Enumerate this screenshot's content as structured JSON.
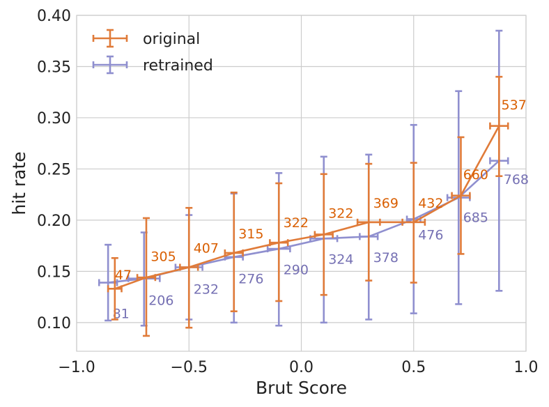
{
  "chart_data": {
    "type": "line",
    "title": "",
    "xlabel": "Brut Score",
    "ylabel": "hit rate",
    "xlim": [
      -1.0,
      1.0
    ],
    "ylim": [
      0.072,
      0.4
    ],
    "xticks": [
      -1.0,
      -0.5,
      0.0,
      0.5,
      1.0
    ],
    "xtick_labels": [
      "−1.0",
      "−0.5",
      "0.0",
      "0.5",
      "1.0"
    ],
    "yticks": [
      0.1,
      0.15,
      0.2,
      0.25,
      0.3,
      0.35,
      0.4
    ],
    "ytick_labels": [
      "0.10",
      "0.15",
      "0.20",
      "0.25",
      "0.30",
      "0.35",
      "0.40"
    ],
    "grid": true,
    "legend_position": "top-left",
    "series": [
      {
        "name": "original",
        "color": "#e07b39",
        "label_color": "#d95f02",
        "x": [
          -0.83,
          -0.69,
          -0.5,
          -0.3,
          -0.1,
          0.1,
          0.3,
          0.5,
          0.71,
          0.88
        ],
        "y": [
          0.133,
          0.144,
          0.154,
          0.168,
          0.178,
          0.186,
          0.198,
          0.198,
          0.224,
          0.292
        ],
        "xerr": [
          0.03,
          0.04,
          0.04,
          0.04,
          0.04,
          0.04,
          0.05,
          0.05,
          0.04,
          0.04
        ],
        "y_low": [
          0.103,
          0.087,
          0.095,
          0.111,
          0.121,
          0.127,
          0.141,
          0.139,
          0.167,
          0.243
        ],
        "y_high": [
          0.163,
          0.202,
          0.212,
          0.227,
          0.236,
          0.245,
          0.255,
          0.256,
          0.281,
          0.34
        ],
        "counts": [
          "47",
          "305",
          "407",
          "315",
          "322",
          "322",
          "369",
          "432",
          "660",
          "537"
        ]
      },
      {
        "name": "retrained",
        "color": "#8f8fcf",
        "label_color": "#7570b3",
        "x": [
          -0.86,
          -0.7,
          -0.5,
          -0.3,
          -0.1,
          0.1,
          0.3,
          0.5,
          0.7,
          0.88
        ],
        "y": [
          0.139,
          0.143,
          0.154,
          0.164,
          0.172,
          0.182,
          0.184,
          0.201,
          0.222,
          0.258
        ],
        "xerr": [
          0.04,
          0.07,
          0.06,
          0.04,
          0.05,
          0.06,
          0.04,
          0.03,
          0.05,
          0.04
        ],
        "y_low": [
          0.102,
          0.097,
          0.103,
          0.1,
          0.097,
          0.1,
          0.103,
          0.109,
          0.118,
          0.131
        ],
        "y_high": [
          0.176,
          0.188,
          0.205,
          0.226,
          0.246,
          0.262,
          0.264,
          0.293,
          0.326,
          0.385
        ],
        "counts": [
          "81",
          "206",
          "232",
          "276",
          "290",
          "324",
          "378",
          "476",
          "685",
          "768"
        ]
      }
    ]
  }
}
